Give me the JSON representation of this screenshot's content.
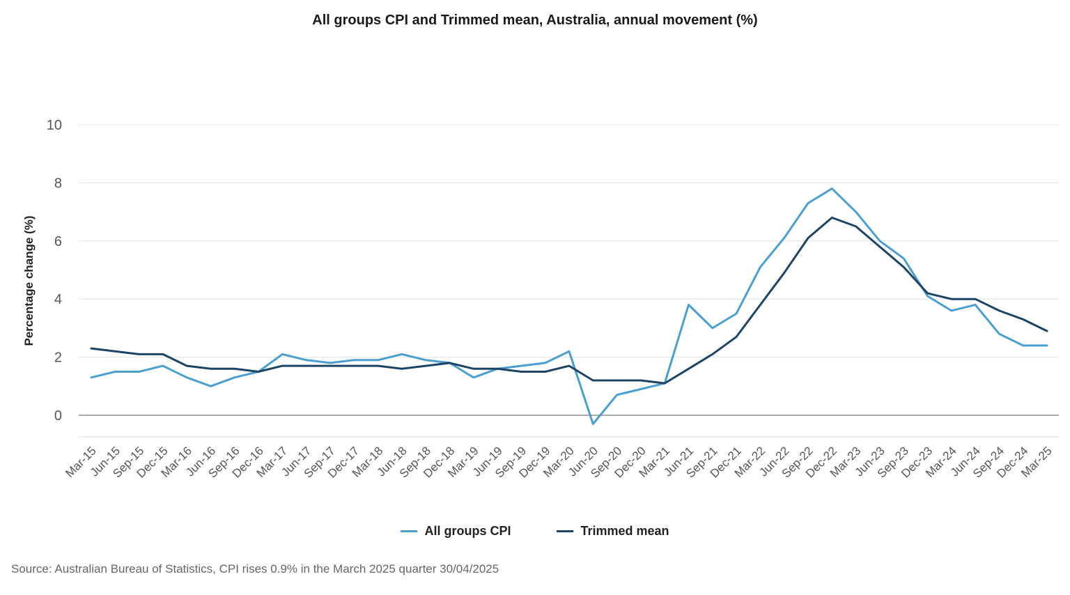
{
  "chart_data": {
    "type": "line",
    "title": "All groups CPI and Trimmed mean, Australia, annual movement (%)",
    "xlabel": "",
    "ylabel": "Percentage change (%)",
    "ylim": [
      -0.75,
      10
    ],
    "yticks": [
      0,
      2,
      4,
      6,
      8,
      10
    ],
    "grid": true,
    "legend_position": "bottom-center",
    "x": [
      "Mar-15",
      "Jun-15",
      "Sep-15",
      "Dec-15",
      "Mar-16",
      "Jun-16",
      "Sep-16",
      "Dec-16",
      "Mar-17",
      "Jun-17",
      "Sep-17",
      "Dec-17",
      "Mar-18",
      "Jun-18",
      "Sep-18",
      "Dec-18",
      "Mar-19",
      "Jun-19",
      "Sep-19",
      "Dec-19",
      "Mar-20",
      "Jun-20",
      "Sep-20",
      "Dec-20",
      "Mar-21",
      "Jun-21",
      "Sep-21",
      "Dec-21",
      "Mar-22",
      "Jun-22",
      "Sep-22",
      "Dec-22",
      "Mar-23",
      "Jun-23",
      "Sep-23",
      "Dec-23",
      "Mar-24",
      "Jun-24",
      "Sep-24",
      "Dec-24",
      "Mar-25"
    ],
    "series": [
      {
        "name": "All groups CPI",
        "color": "#4a9fd0",
        "values": [
          1.3,
          1.5,
          1.5,
          1.7,
          1.3,
          1.0,
          1.3,
          1.5,
          2.1,
          1.9,
          1.8,
          1.9,
          1.9,
          2.1,
          1.9,
          1.8,
          1.3,
          1.6,
          1.7,
          1.8,
          2.2,
          -0.3,
          0.7,
          0.9,
          1.1,
          3.8,
          3.0,
          3.5,
          5.1,
          6.1,
          7.3,
          7.8,
          7.0,
          6.0,
          5.4,
          4.1,
          3.6,
          3.8,
          2.8,
          2.4,
          2.4
        ]
      },
      {
        "name": "Trimmed mean",
        "color": "#1c4466",
        "values": [
          2.3,
          2.2,
          2.1,
          2.1,
          1.7,
          1.6,
          1.6,
          1.5,
          1.7,
          1.7,
          1.7,
          1.7,
          1.7,
          1.6,
          1.7,
          1.8,
          1.6,
          1.6,
          1.5,
          1.5,
          1.7,
          1.2,
          1.2,
          1.2,
          1.1,
          1.6,
          2.1,
          2.7,
          3.8,
          4.9,
          6.1,
          6.8,
          6.5,
          5.8,
          5.1,
          4.2,
          4.0,
          4.0,
          3.6,
          3.3,
          2.9
        ]
      }
    ],
    "source": "Source: Australian Bureau of Statistics, CPI rises 0.9% in the March 2025 quarter  30/04/2025"
  }
}
